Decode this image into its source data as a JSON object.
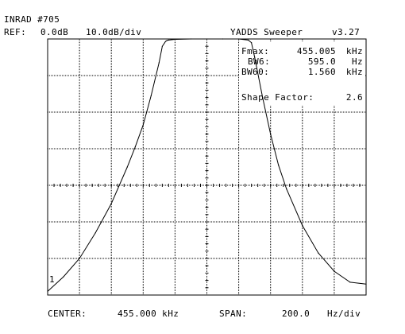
{
  "header": {
    "title": "INRAD #705",
    "ref_label": "REF:",
    "ref_level": "0.0dB",
    "scale": "10.0dB/div",
    "app_name": "YADDS Sweeper",
    "version": "v3.27"
  },
  "readouts": {
    "fmax_label": "Fmax:",
    "fmax_value": "455.005",
    "fmax_unit": "kHz",
    "bw6_label": "BW6:",
    "bw6_value": "595.0",
    "bw6_unit": "Hz",
    "bw60_label": "BW60:",
    "bw60_value": "1.560",
    "bw60_unit": "kHz",
    "shape_label": "Shape Factor:",
    "shape_value": "2.6"
  },
  "footer": {
    "center_label": "CENTER:",
    "center_value": "455.000 kHz",
    "span_label": "SPAN:",
    "span_value": "200.0",
    "span_unit": "Hz/div"
  },
  "marker_label": "1",
  "chart_data": {
    "type": "line",
    "xlabel": "",
    "ylabel": "",
    "x_unit_note": "offset from center in Hz",
    "xlim": [
      -1000,
      1000
    ],
    "ylim": [
      -70,
      0
    ],
    "x_divisions": 10,
    "y_divisions": 7,
    "grid": true,
    "series": [
      {
        "x": [
          -1000,
          -900,
          -800,
          -700,
          -600,
          -500,
          -450,
          -400,
          -350,
          -300,
          -280,
          -260,
          -250,
          -240,
          -200,
          -100,
          0,
          100,
          200,
          260,
          280,
          300,
          350,
          400,
          450,
          500,
          600,
          700,
          800,
          900,
          1000
        ],
        "y": [
          -69,
          -65,
          -60,
          -53,
          -45,
          -35,
          -29.5,
          -23.5,
          -15.5,
          -6.5,
          -2,
          -0.7,
          -0.4,
          -0.3,
          -0.1,
          0,
          0,
          0,
          0,
          -0.3,
          -1,
          -5,
          -16,
          -26,
          -34.5,
          -41,
          -51,
          -58.5,
          -63.5,
          -66.5,
          -67
        ]
      }
    ]
  }
}
